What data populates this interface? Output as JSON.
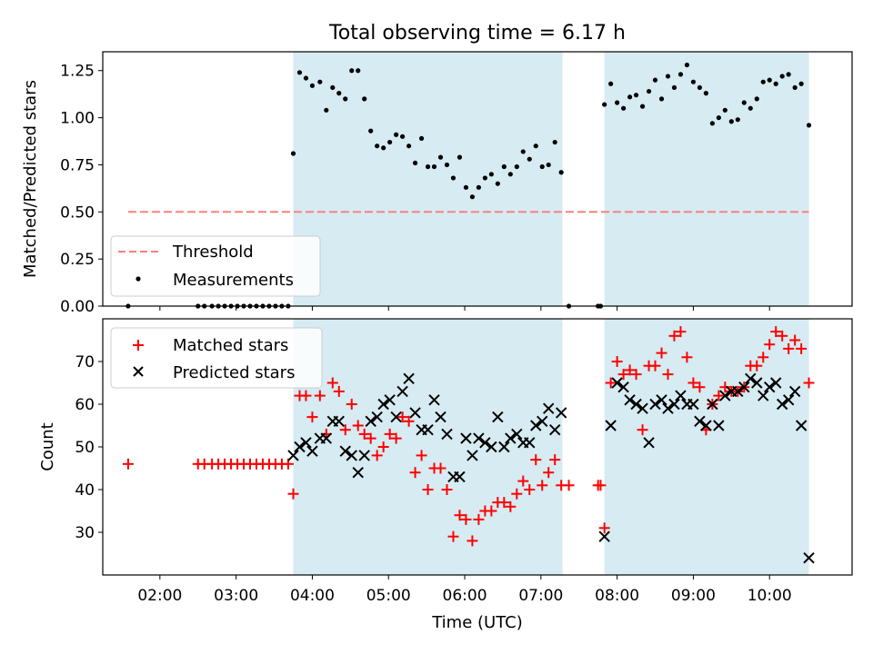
{
  "figure": {
    "title": "Total observing time = 6.17 h",
    "xlabel": "Time (UTC)"
  },
  "colors": {
    "shade": "#add8e6",
    "threshold": "#ff7f7f",
    "measurements": "#000000",
    "matched": "#ff0000",
    "predicted": "#000000"
  },
  "chart_data": [
    {
      "type": "scatter",
      "panel": "top",
      "ylabel": "Matched/Predicted stars",
      "xlim": [
        "01:15",
        "11:05"
      ],
      "ylim": [
        0,
        1.35
      ],
      "x_ticks": [
        "02:00",
        "03:00",
        "04:00",
        "05:00",
        "06:00",
        "07:00",
        "08:00",
        "09:00",
        "10:00"
      ],
      "y_ticks": [
        "0.00",
        "0.25",
        "0.50",
        "0.75",
        "1.00",
        "1.25"
      ],
      "shaded_intervals": [
        [
          "03:45",
          "07:17"
        ],
        [
          "07:50",
          "10:31"
        ]
      ],
      "threshold": {
        "name": "Threshold",
        "value": 0.5,
        "x_range": [
          "01:35",
          "10:31"
        ]
      },
      "legend": {
        "position": "lower-left",
        "entries": [
          "Threshold",
          "Measurements"
        ]
      },
      "series": [
        {
          "name": "Measurements",
          "x": [
            "01:35",
            "02:30",
            "02:35",
            "02:41",
            "02:46",
            "02:51",
            "02:56",
            "03:01",
            "03:06",
            "03:11",
            "03:16",
            "03:21",
            "03:26",
            "03:31",
            "03:36",
            "03:41",
            "03:45",
            "03:50",
            "03:55",
            "04:00",
            "04:06",
            "04:11",
            "04:16",
            "04:21",
            "04:26",
            "04:31",
            "04:36",
            "04:41",
            "04:46",
            "04:51",
            "04:56",
            "05:01",
            "05:06",
            "05:11",
            "05:16",
            "05:21",
            "05:26",
            "05:31",
            "05:36",
            "05:41",
            "05:46",
            "05:51",
            "05:56",
            "06:01",
            "06:06",
            "06:11",
            "06:16",
            "06:21",
            "06:26",
            "06:31",
            "06:36",
            "06:41",
            "06:46",
            "06:51",
            "06:56",
            "07:01",
            "07:06",
            "07:11",
            "07:16",
            "07:22",
            "07:45",
            "07:47",
            "07:50",
            "07:55",
            "08:00",
            "08:05",
            "08:10",
            "08:15",
            "08:20",
            "08:25",
            "08:30",
            "08:35",
            "08:40",
            "08:45",
            "08:50",
            "08:55",
            "09:00",
            "09:05",
            "09:10",
            "09:15",
            "09:20",
            "09:25",
            "09:30",
            "09:35",
            "09:40",
            "09:45",
            "09:50",
            "09:55",
            "10:00",
            "10:05",
            "10:10",
            "10:15",
            "10:20",
            "10:25",
            "10:31"
          ],
          "y": [
            0,
            0,
            0,
            0,
            0,
            0,
            0,
            0,
            0,
            0,
            0,
            0,
            0,
            0,
            0,
            0,
            0.81,
            1.24,
            1.21,
            1.17,
            1.19,
            1.04,
            1.16,
            1.13,
            1.1,
            1.25,
            1.25,
            1.1,
            0.93,
            0.85,
            0.84,
            0.87,
            0.91,
            0.9,
            0.85,
            0.76,
            0.89,
            0.74,
            0.74,
            0.79,
            0.75,
            0.68,
            0.79,
            0.63,
            0.58,
            0.63,
            0.68,
            0.7,
            0.65,
            0.74,
            0.7,
            0.74,
            0.82,
            0.78,
            0.85,
            0.74,
            0.75,
            0.87,
            0.71,
            0,
            0,
            0,
            1.07,
            1.18,
            1.08,
            1.05,
            1.11,
            1.12,
            1.06,
            1.14,
            1.2,
            1.1,
            1.22,
            1.16,
            1.23,
            1.28,
            1.19,
            1.16,
            1.13,
            0.97,
            1.0,
            1.04,
            0.98,
            0.99,
            1.08,
            1.05,
            1.1,
            1.19,
            1.2,
            1.18,
            1.22,
            1.23,
            1.16,
            1.18,
            0.96
          ]
        }
      ]
    },
    {
      "type": "scatter",
      "panel": "bottom",
      "ylabel": "Count",
      "xlim": [
        "01:15",
        "11:05"
      ],
      "ylim": [
        20,
        80
      ],
      "x_ticks": [
        "02:00",
        "03:00",
        "04:00",
        "05:00",
        "06:00",
        "07:00",
        "08:00",
        "09:00",
        "10:00"
      ],
      "y_ticks": [
        "30",
        "40",
        "50",
        "60",
        "70"
      ],
      "shaded_intervals": [
        [
          "03:45",
          "07:17"
        ],
        [
          "07:50",
          "10:31"
        ]
      ],
      "legend": {
        "position": "upper-left",
        "entries": [
          "Matched stars",
          "Predicted stars"
        ]
      },
      "series": [
        {
          "name": "Matched stars",
          "marker": "plus",
          "x": [
            "01:35",
            "02:30",
            "02:35",
            "02:41",
            "02:46",
            "02:51",
            "02:56",
            "03:01",
            "03:06",
            "03:11",
            "03:16",
            "03:21",
            "03:26",
            "03:31",
            "03:36",
            "03:41",
            "03:45",
            "03:50",
            "03:55",
            "04:00",
            "04:06",
            "04:11",
            "04:16",
            "04:21",
            "04:26",
            "04:31",
            "04:36",
            "04:41",
            "04:46",
            "04:51",
            "04:56",
            "05:01",
            "05:06",
            "05:11",
            "05:16",
            "05:21",
            "05:26",
            "05:31",
            "05:36",
            "05:41",
            "05:46",
            "05:51",
            "05:56",
            "06:01",
            "06:06",
            "06:11",
            "06:16",
            "06:21",
            "06:26",
            "06:31",
            "06:36",
            "06:41",
            "06:46",
            "06:51",
            "06:56",
            "07:01",
            "07:06",
            "07:11",
            "07:16",
            "07:22",
            "07:45",
            "07:47",
            "07:50",
            "07:55",
            "08:00",
            "08:05",
            "08:10",
            "08:15",
            "08:20",
            "08:25",
            "08:30",
            "08:35",
            "08:40",
            "08:45",
            "08:50",
            "08:55",
            "09:00",
            "09:05",
            "09:10",
            "09:15",
            "09:20",
            "09:25",
            "09:30",
            "09:35",
            "09:40",
            "09:45",
            "09:50",
            "09:55",
            "10:00",
            "10:05",
            "10:10",
            "10:15",
            "10:20",
            "10:25",
            "10:31"
          ],
          "y": [
            46,
            46,
            46,
            46,
            46,
            46,
            46,
            46,
            46,
            46,
            46,
            46,
            46,
            46,
            46,
            46,
            39,
            62,
            62,
            57,
            62,
            53,
            65,
            63,
            54,
            60,
            55,
            53,
            52,
            48,
            50,
            53,
            52,
            57,
            56,
            44,
            48,
            40,
            45,
            45,
            40,
            29,
            34,
            33,
            28,
            33,
            35,
            35,
            37,
            37,
            36,
            39,
            42,
            40,
            47,
            41,
            44,
            47,
            41,
            41,
            41,
            41,
            31,
            65,
            70,
            67,
            68,
            67,
            54,
            69,
            69,
            72,
            67,
            76,
            77,
            71,
            65,
            64,
            54,
            60,
            62,
            64,
            63,
            63,
            64,
            69,
            69,
            71,
            74,
            77,
            76,
            73,
            75,
            73,
            65
          ]
        },
        {
          "name": "Predicted stars",
          "marker": "x",
          "x": [
            "03:45",
            "03:50",
            "03:55",
            "04:00",
            "04:06",
            "04:11",
            "04:16",
            "04:21",
            "04:26",
            "04:31",
            "04:36",
            "04:41",
            "04:46",
            "04:51",
            "04:56",
            "05:01",
            "05:06",
            "05:11",
            "05:16",
            "05:21",
            "05:26",
            "05:31",
            "05:36",
            "05:41",
            "05:46",
            "05:51",
            "05:56",
            "06:01",
            "06:06",
            "06:11",
            "06:16",
            "06:21",
            "06:26",
            "06:31",
            "06:36",
            "06:41",
            "06:46",
            "06:51",
            "06:56",
            "07:01",
            "07:06",
            "07:11",
            "07:16",
            "07:50",
            "07:55",
            "08:00",
            "08:05",
            "08:10",
            "08:15",
            "08:20",
            "08:25",
            "08:30",
            "08:35",
            "08:40",
            "08:45",
            "08:50",
            "08:55",
            "09:00",
            "09:05",
            "09:10",
            "09:15",
            "09:20",
            "09:25",
            "09:30",
            "09:35",
            "09:40",
            "09:45",
            "09:50",
            "09:55",
            "10:00",
            "10:05",
            "10:10",
            "10:15",
            "10:20",
            "10:25",
            "10:31"
          ],
          "y": [
            48,
            50,
            51,
            49,
            52,
            52,
            56,
            56,
            49,
            48,
            44,
            48,
            56,
            57,
            60,
            61,
            57,
            63,
            66,
            58,
            54,
            54,
            61,
            57,
            53,
            43,
            43,
            52,
            48,
            52,
            51,
            50,
            57,
            50,
            52,
            53,
            51,
            51,
            55,
            56,
            59,
            54,
            58,
            29,
            55,
            65,
            64,
            61,
            60,
            59,
            51,
            60,
            61,
            59,
            60,
            62,
            60,
            60,
            56,
            55,
            60,
            55,
            62,
            63,
            63,
            64,
            66,
            65,
            62,
            64,
            65,
            60,
            61,
            63,
            55,
            24
          ]
        }
      ]
    }
  ]
}
